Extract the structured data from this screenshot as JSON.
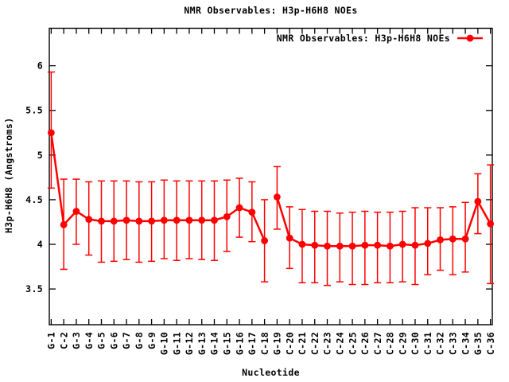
{
  "chart_data": {
    "type": "line",
    "title": "NMR Observables: H3p-H6H8 NOEs",
    "xlabel": "Nucleotide",
    "ylabel": "H3p-H6H8 (Angstroms)",
    "legend_position": "top-right-inside",
    "grid": false,
    "categories": [
      "G-1",
      "C-2",
      "G-3",
      "G-4",
      "G-5",
      "G-6",
      "G-7",
      "G-8",
      "G-9",
      "G-10",
      "G-11",
      "G-12",
      "G-13",
      "G-14",
      "G-15",
      "G-16",
      "G-17",
      "C-18",
      "G-19",
      "C-20",
      "C-21",
      "C-22",
      "C-23",
      "C-24",
      "C-25",
      "C-26",
      "C-27",
      "C-28",
      "C-29",
      "C-30",
      "C-31",
      "C-32",
      "C-33",
      "C-34",
      "G-35",
      "C-36"
    ],
    "series": [
      {
        "name": "NMR Observables: H3p-H6H8 NOEs",
        "color": "#ff0000",
        "marker": "filled-circle",
        "values": [
          5.25,
          4.22,
          4.37,
          4.28,
          4.26,
          4.26,
          4.27,
          4.26,
          4.26,
          4.27,
          4.27,
          4.27,
          4.27,
          4.27,
          4.31,
          4.41,
          4.36,
          4.04,
          4.53,
          4.07,
          4.0,
          3.99,
          3.98,
          3.98,
          3.98,
          3.99,
          3.99,
          3.98,
          4.0,
          3.99,
          4.01,
          4.05,
          4.06,
          4.06,
          4.48,
          4.23
        ],
        "err_low": [
          4.63,
          3.72,
          4.0,
          3.88,
          3.8,
          3.81,
          3.83,
          3.8,
          3.81,
          3.84,
          3.82,
          3.84,
          3.83,
          3.82,
          3.92,
          4.08,
          4.03,
          3.58,
          4.17,
          3.73,
          3.57,
          3.57,
          3.54,
          3.58,
          3.55,
          3.55,
          3.57,
          3.57,
          3.58,
          3.55,
          3.66,
          3.71,
          3.66,
          3.69,
          4.12,
          3.56
        ],
        "err_high": [
          5.93,
          4.73,
          4.73,
          4.7,
          4.71,
          4.71,
          4.71,
          4.7,
          4.7,
          4.72,
          4.71,
          4.71,
          4.71,
          4.71,
          4.72,
          4.74,
          4.7,
          4.5,
          4.87,
          4.42,
          4.39,
          4.37,
          4.37,
          4.35,
          4.36,
          4.37,
          4.36,
          4.36,
          4.37,
          4.41,
          4.41,
          4.41,
          4.42,
          4.47,
          4.79,
          4.89
        ]
      }
    ],
    "segments": [
      [
        0,
        17
      ],
      [
        18,
        35
      ]
    ],
    "yticks": [
      "3.5",
      "4",
      "4.5",
      "5",
      "5.5",
      "6"
    ],
    "ylim": [
      3.1,
      6.42
    ],
    "colors": {
      "foreground": "#000000",
      "background": "#ffffff"
    }
  }
}
